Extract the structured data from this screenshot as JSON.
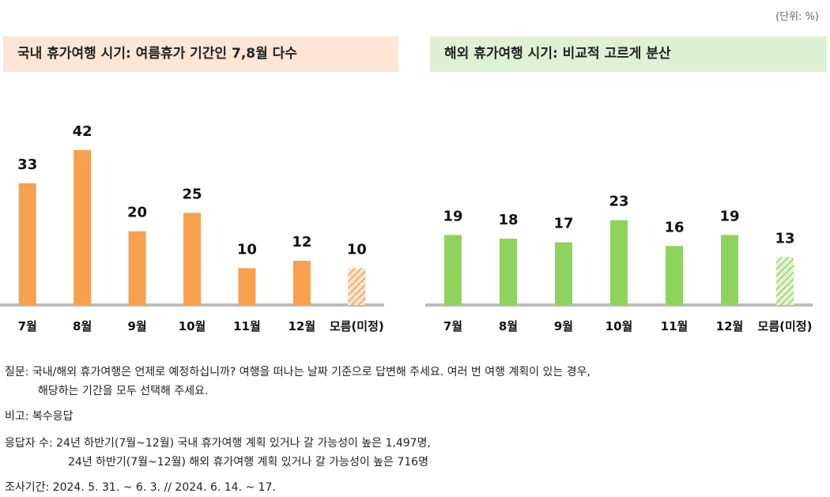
{
  "unit_label": "(단위: %)",
  "chart_data": [
    {
      "type": "bar",
      "title": "국내 휴가여행 시기: 여름휴가 기간인 7,8월 다수",
      "categories": [
        "7월",
        "8월",
        "9월",
        "10월",
        "11월",
        "12월",
        "모름(미정)"
      ],
      "values": [
        33,
        42,
        20,
        25,
        10,
        12,
        10
      ],
      "hatched_categories": [
        "모름(미정)"
      ],
      "color": "#f7a04e",
      "hatch_color": "#f7a04e",
      "ylim": [
        0,
        42
      ],
      "grid": false,
      "xlabel": "",
      "ylabel": ""
    },
    {
      "type": "bar",
      "title": "해외 휴가여행 시기: 비교적 고르게 분산",
      "categories": [
        "7월",
        "8월",
        "9월",
        "10월",
        "11월",
        "12월",
        "모름(미정)"
      ],
      "values": [
        19,
        18,
        17,
        23,
        16,
        19,
        13
      ],
      "hatched_categories": [
        "모름(미정)"
      ],
      "color": "#8fd35f",
      "hatch_color": "#8fd35f",
      "ylim": [
        0,
        42
      ],
      "grid": false,
      "xlabel": "",
      "ylabel": ""
    }
  ],
  "notes": {
    "question_1": "질문: 국내/해외 휴가여행은 언제로 예정하십니까? 여행을 떠나는 날짜 기준으로 답변해 주세요. 여러 번 여행 계획이 있는 경우,",
    "question_2": "해당하는 기간을 모두 선택해 주세요.",
    "remark": "비고: 복수응답",
    "respondents_1": "응답자 수: 24년 하반기(7월~12월) 국내 휴가여행 계획 있거나 갈 가능성이 높은 1,497명,",
    "respondents_2": "24년 하반기(7월~12월) 해외 휴가여행 계획 있거나 갈 가능성이 높은 716명",
    "period": "조사기간: 2024. 5. 31. ~ 6. 3. // 2024. 6. 14. ~ 17."
  }
}
